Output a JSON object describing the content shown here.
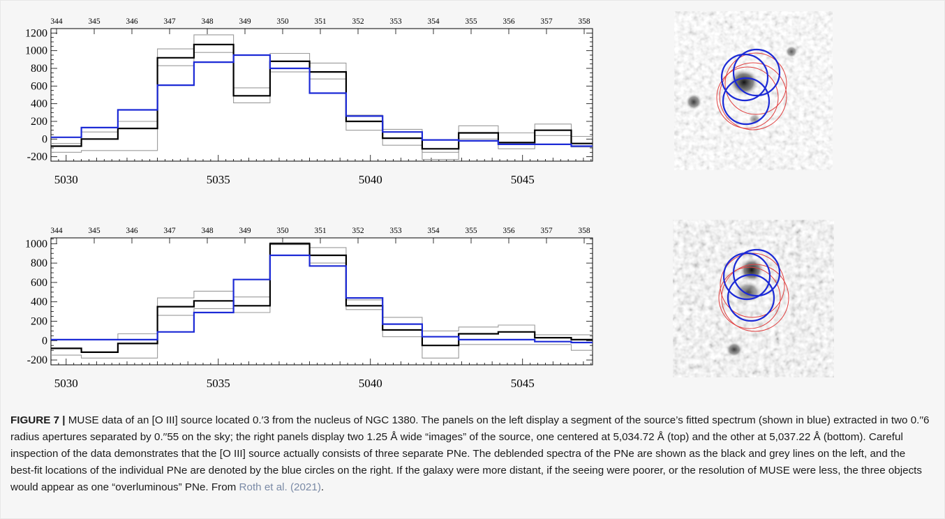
{
  "figure": {
    "label": "FIGURE 7 |",
    "caption": " MUSE data of an [O III] source located 0.′3 from the nucleus of NGC 1380. The panels on the left display a segment of the source’s fitted spectrum (shown in blue) extracted in two 0.′′6 radius apertures separated by 0.′′55 on the sky; the right panels display two 1.25 Å wide “images” of the source, one centered at 5,034.72 Å (top) and the other at 5,037.22 Å (bottom). Careful inspection of the data demonstrates that the [O III] source actually consists of three separate PNe. The deblended spectra of the PNe are shown as the black and grey lines on the left, and the best-fit locations of the individual PNe are denoted by the blue circles on the right. If the galaxy were more distant, if the seeing were poorer, or the resolution of MUSE were less, the three objects would appear as one “overluminous” PNe. From ",
    "reference": "Roth et al. (2021)",
    "trailing": "."
  },
  "chart_data": [
    {
      "type": "line",
      "panel": "top",
      "step": true,
      "xlim": [
        5029.5,
        5047.3
      ],
      "ylim": [
        -250,
        1250
      ],
      "bottom_ticks": [
        5030,
        5035,
        5040,
        5045
      ],
      "top_ticks": [
        "344",
        "345",
        "346",
        "347",
        "348",
        "349",
        "350",
        "351",
        "352",
        "353",
        "354",
        "355",
        "356",
        "357",
        "358"
      ],
      "y_ticks": [
        1200,
        1000,
        800,
        600,
        400,
        200,
        0,
        -200
      ],
      "y_tick_labels": [
        "1200",
        "1000",
        "800",
        "600",
        "400",
        "200",
        "0",
        "-200"
      ],
      "bin_edges": [
        5029.5,
        5030.5,
        5031.7,
        5033.0,
        5034.2,
        5035.5,
        5036.7,
        5038.0,
        5039.2,
        5040.4,
        5041.7,
        5042.9,
        5044.2,
        5045.4,
        5046.6,
        5047.3
      ],
      "series": [
        {
          "color": "#9a9a9a",
          "width": 1.1,
          "values": [
            -50,
            80,
            200,
            1020,
            1180,
            580,
            970,
            860,
            270,
            110,
            -150,
            150,
            70,
            170,
            30
          ]
        },
        {
          "color": "#9a9a9a",
          "width": 1.1,
          "values": [
            -150,
            -130,
            -130,
            830,
            980,
            410,
            760,
            680,
            100,
            -70,
            -230,
            0,
            -110,
            40,
            -90
          ]
        },
        {
          "color": "#000000",
          "width": 2.2,
          "values": [
            -80,
            0,
            120,
            920,
            1070,
            490,
            880,
            760,
            200,
            10,
            -110,
            70,
            -40,
            100,
            -50
          ]
        },
        {
          "color": "#1c2ad6",
          "width": 2.2,
          "values": [
            20,
            130,
            330,
            610,
            870,
            950,
            800,
            520,
            260,
            80,
            -10,
            -20,
            -60,
            -60,
            -80
          ]
        }
      ]
    },
    {
      "type": "line",
      "panel": "bottom",
      "step": true,
      "xlim": [
        5029.5,
        5047.3
      ],
      "ylim": [
        -250,
        1060
      ],
      "bottom_ticks": [
        5030,
        5035,
        5040,
        5045
      ],
      "top_ticks": [
        "344",
        "345",
        "346",
        "347",
        "348",
        "349",
        "350",
        "351",
        "352",
        "353",
        "354",
        "355",
        "356",
        "357",
        "358"
      ],
      "y_ticks": [
        1000,
        800,
        600,
        400,
        200,
        0,
        -200
      ],
      "y_tick_labels": [
        "1000",
        "800",
        "600",
        "400",
        "200",
        "0",
        "-200"
      ],
      "bin_edges": [
        5029.5,
        5030.5,
        5031.7,
        5033.0,
        5034.2,
        5035.5,
        5036.7,
        5038.0,
        5039.2,
        5040.4,
        5041.7,
        5042.9,
        5044.2,
        5045.4,
        5046.6,
        5047.3
      ],
      "series": [
        {
          "color": "#9a9a9a",
          "width": 1.1,
          "values": [
            10,
            10,
            70,
            440,
            510,
            450,
            990,
            960,
            420,
            240,
            100,
            140,
            160,
            60,
            60
          ]
        },
        {
          "color": "#9a9a9a",
          "width": 1.1,
          "values": [
            -150,
            -180,
            -180,
            260,
            330,
            290,
            1010,
            800,
            320,
            40,
            -180,
            -40,
            -40,
            -40,
            -100
          ]
        },
        {
          "color": "#000000",
          "width": 2.2,
          "values": [
            -80,
            -120,
            -30,
            350,
            410,
            360,
            1000,
            880,
            360,
            110,
            -50,
            70,
            90,
            30,
            10
          ]
        },
        {
          "color": "#1c2ad6",
          "width": 2.2,
          "values": [
            10,
            10,
            10,
            90,
            290,
            630,
            880,
            770,
            440,
            170,
            40,
            10,
            10,
            -10,
            -20
          ]
        }
      ]
    }
  ]
}
